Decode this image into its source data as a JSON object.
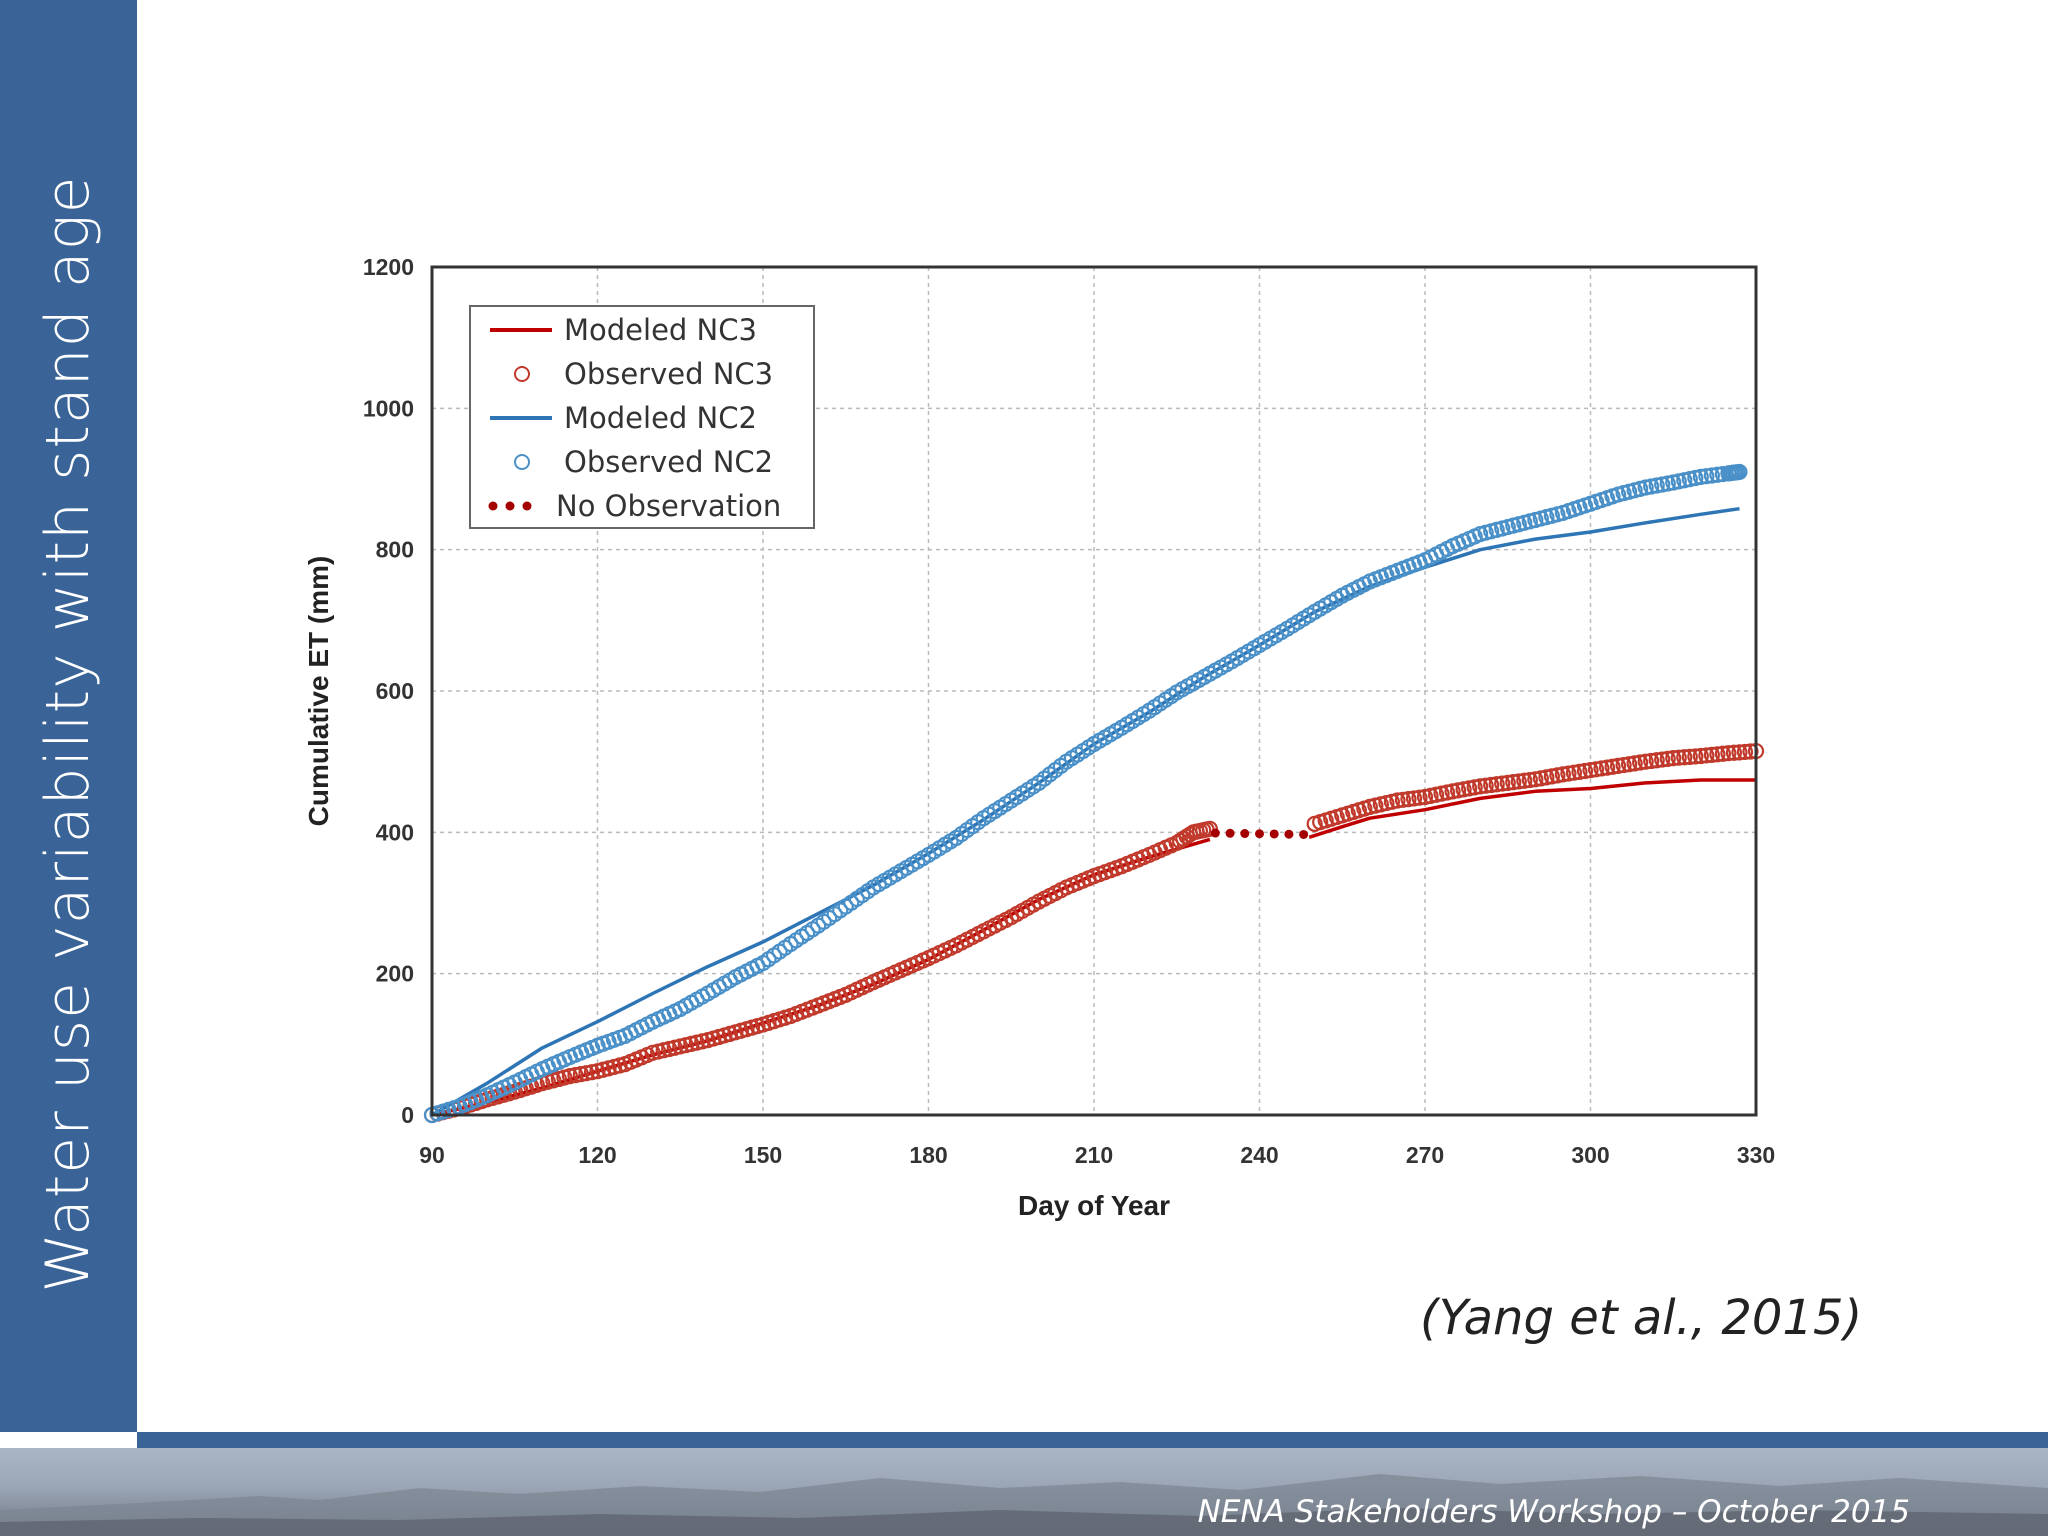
{
  "slide": {
    "title": "Water use variability with stand age",
    "citation": "(Yang et al., 2015)",
    "footer": "NENA Stakeholders Workshop – October 2015",
    "accent_color": "#3a6497"
  },
  "chart_data": {
    "type": "line",
    "xlabel": "Day of Year",
    "ylabel": "Cumulative ET (mm)",
    "xlim": [
      90,
      330
    ],
    "ylim": [
      0,
      1200
    ],
    "xticks": [
      90,
      120,
      150,
      180,
      210,
      240,
      270,
      300,
      330
    ],
    "yticks": [
      0,
      200,
      400,
      600,
      800,
      1000,
      1200
    ],
    "grid": true,
    "legend_position": "top-left",
    "series": [
      {
        "name": "Modeled NC3",
        "kind": "line",
        "color": "#c00000",
        "points": [
          [
            90,
            0
          ],
          [
            100,
            18
          ],
          [
            110,
            38
          ],
          [
            120,
            62
          ],
          [
            130,
            85
          ],
          [
            140,
            105
          ],
          [
            150,
            130
          ],
          [
            160,
            155
          ],
          [
            170,
            185
          ],
          [
            180,
            220
          ],
          [
            190,
            262
          ],
          [
            200,
            305
          ],
          [
            210,
            340
          ],
          [
            220,
            365
          ],
          [
            231,
            390
          ]
        ]
      },
      {
        "name": "Modeled NC3",
        "kind": "line",
        "color": "#c00000",
        "legend": false,
        "points": [
          [
            249,
            393
          ],
          [
            255,
            408
          ],
          [
            260,
            420
          ],
          [
            270,
            432
          ],
          [
            280,
            448
          ],
          [
            290,
            458
          ],
          [
            300,
            462
          ],
          [
            310,
            470
          ],
          [
            320,
            474
          ],
          [
            330,
            474
          ]
        ]
      },
      {
        "name": "Observed NC3",
        "kind": "markers",
        "color": "#c0392b",
        "points": [
          [
            90,
            0
          ],
          [
            95,
            10
          ],
          [
            100,
            22
          ],
          [
            105,
            33
          ],
          [
            110,
            45
          ],
          [
            115,
            55
          ],
          [
            120,
            62
          ],
          [
            125,
            72
          ],
          [
            130,
            88
          ],
          [
            135,
            97
          ],
          [
            140,
            106
          ],
          [
            145,
            117
          ],
          [
            150,
            128
          ],
          [
            155,
            140
          ],
          [
            160,
            155
          ],
          [
            165,
            170
          ],
          [
            170,
            188
          ],
          [
            175,
            205
          ],
          [
            180,
            222
          ],
          [
            185,
            240
          ],
          [
            190,
            260
          ],
          [
            195,
            280
          ],
          [
            200,
            302
          ],
          [
            205,
            322
          ],
          [
            210,
            338
          ],
          [
            215,
            352
          ],
          [
            220,
            368
          ],
          [
            225,
            385
          ],
          [
            228,
            400
          ],
          [
            231,
            405
          ],
          [
            250,
            412
          ],
          [
            255,
            424
          ],
          [
            260,
            436
          ],
          [
            265,
            445
          ],
          [
            270,
            450
          ],
          [
            275,
            458
          ],
          [
            280,
            465
          ],
          [
            285,
            470
          ],
          [
            290,
            475
          ],
          [
            295,
            482
          ],
          [
            300,
            488
          ],
          [
            305,
            494
          ],
          [
            310,
            500
          ],
          [
            315,
            505
          ],
          [
            320,
            508
          ],
          [
            325,
            512
          ],
          [
            330,
            515
          ]
        ]
      },
      {
        "name": "Modeled NC2",
        "kind": "line",
        "color": "#2e75b6",
        "points": [
          [
            90,
            0
          ],
          [
            100,
            45
          ],
          [
            110,
            95
          ],
          [
            120,
            132
          ],
          [
            130,
            172
          ],
          [
            140,
            210
          ],
          [
            150,
            245
          ],
          [
            160,
            285
          ],
          [
            170,
            325
          ],
          [
            180,
            370
          ],
          [
            190,
            418
          ],
          [
            200,
            470
          ],
          [
            210,
            525
          ],
          [
            220,
            570
          ],
          [
            230,
            620
          ],
          [
            240,
            665
          ],
          [
            250,
            712
          ],
          [
            260,
            748
          ],
          [
            270,
            775
          ],
          [
            280,
            800
          ],
          [
            290,
            815
          ],
          [
            300,
            825
          ],
          [
            310,
            838
          ],
          [
            320,
            850
          ],
          [
            327,
            858
          ]
        ]
      },
      {
        "name": "Observed NC2",
        "kind": "markers",
        "color": "#4a90c8",
        "points": [
          [
            90,
            0
          ],
          [
            95,
            12
          ],
          [
            100,
            28
          ],
          [
            105,
            46
          ],
          [
            110,
            65
          ],
          [
            115,
            82
          ],
          [
            120,
            98
          ],
          [
            125,
            112
          ],
          [
            130,
            132
          ],
          [
            135,
            150
          ],
          [
            140,
            172
          ],
          [
            145,
            195
          ],
          [
            150,
            215
          ],
          [
            155,
            242
          ],
          [
            160,
            268
          ],
          [
            165,
            295
          ],
          [
            170,
            322
          ],
          [
            175,
            345
          ],
          [
            180,
            368
          ],
          [
            185,
            392
          ],
          [
            190,
            420
          ],
          [
            195,
            445
          ],
          [
            200,
            470
          ],
          [
            205,
            500
          ],
          [
            210,
            525
          ],
          [
            215,
            548
          ],
          [
            220,
            572
          ],
          [
            225,
            598
          ],
          [
            230,
            620
          ],
          [
            235,
            642
          ],
          [
            240,
            665
          ],
          [
            245,
            688
          ],
          [
            250,
            712
          ],
          [
            255,
            735
          ],
          [
            260,
            755
          ],
          [
            265,
            770
          ],
          [
            270,
            785
          ],
          [
            275,
            805
          ],
          [
            280,
            822
          ],
          [
            285,
            832
          ],
          [
            290,
            842
          ],
          [
            295,
            852
          ],
          [
            300,
            865
          ],
          [
            305,
            878
          ],
          [
            310,
            888
          ],
          [
            315,
            895
          ],
          [
            320,
            903
          ],
          [
            325,
            908
          ],
          [
            327,
            910
          ]
        ]
      },
      {
        "name": "No Observation",
        "kind": "dotted",
        "color": "#a50000",
        "points": [
          [
            232,
            399
          ],
          [
            248,
            397
          ]
        ]
      }
    ]
  }
}
